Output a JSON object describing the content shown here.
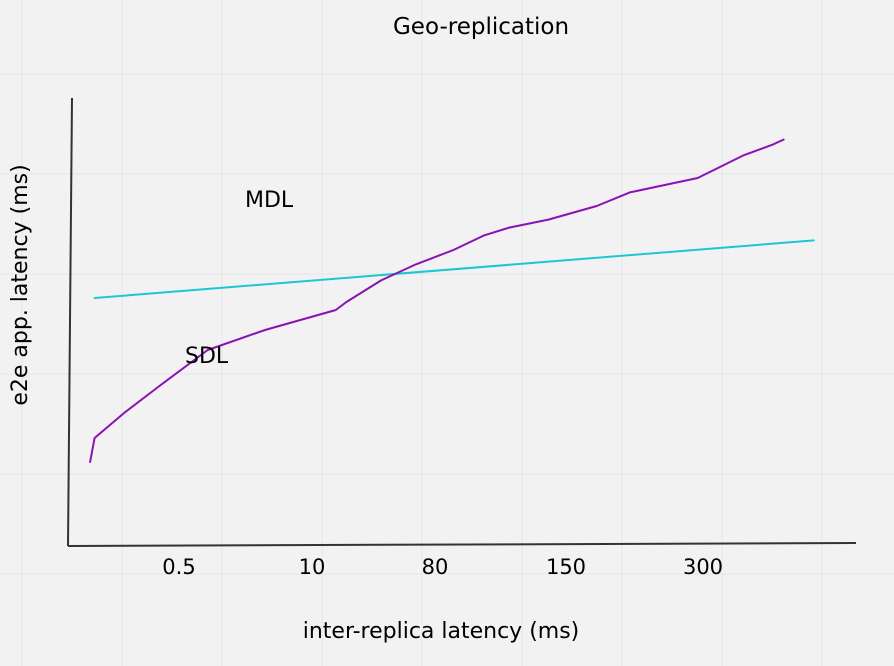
{
  "chart_data": {
    "type": "line",
    "title": "Geo-replication",
    "xlabel": "inter-replica latency (ms)",
    "ylabel": "e2e app. latency (ms)",
    "x_tick_labels": [
      "0.5",
      "10",
      "80",
      "150",
      "300"
    ],
    "y_tick_labels": [],
    "grid": true,
    "colors": {
      "MDL": "#1cc6d6",
      "SDL": "#8a12b4",
      "axis": "#333333",
      "grid": "#e6e6e6"
    },
    "series": [
      {
        "name": "MDL",
        "x": [
          0.15,
          4.92
        ],
        "y": [
          3.1,
          3.82
        ]
      },
      {
        "name": "SDL",
        "x": [
          0.12,
          0.15,
          0.35,
          0.58,
          0.9,
          1.28,
          1.75,
          1.82,
          2.05,
          2.28,
          2.53,
          2.73,
          2.9,
          3.16,
          3.48,
          3.7,
          4.15,
          4.45,
          4.65,
          4.72
        ],
        "y": [
          1.05,
          1.35,
          1.67,
          2.0,
          2.45,
          2.7,
          2.95,
          3.05,
          3.32,
          3.52,
          3.7,
          3.88,
          3.98,
          4.08,
          4.25,
          4.42,
          4.6,
          4.88,
          5.02,
          5.08
        ]
      }
    ]
  }
}
